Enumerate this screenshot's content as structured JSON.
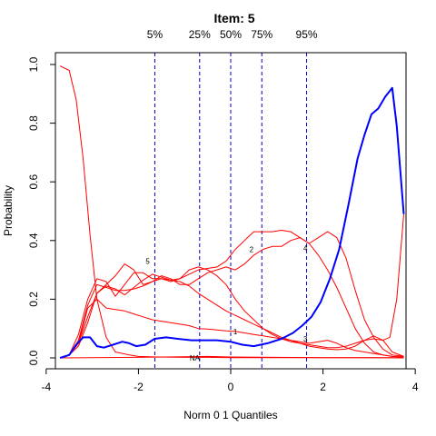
{
  "chart_data": {
    "type": "line",
    "title": "Item:  5",
    "xlabel": "Norm 0 1 Quantiles",
    "ylabel": "Probability",
    "xlim": [
      -3.8,
      3.8
    ],
    "ylim": [
      0,
      1
    ],
    "x_ticks": [
      -4,
      -2,
      0,
      2,
      4
    ],
    "y_ticks": [
      0.0,
      0.2,
      0.4,
      0.6,
      0.8,
      1.0
    ],
    "x_tick_labels": [
      "-4",
      "-2",
      "0",
      "2",
      "4"
    ],
    "y_tick_labels": [
      "0.0",
      "0.2",
      "0.4",
      "0.6",
      "0.8",
      "1.0"
    ],
    "grid": false,
    "quantile_lines": [
      {
        "label": "5%",
        "x": -1.645
      },
      {
        "label": "25%",
        "x": -0.674
      },
      {
        "label": "50%",
        "x": 0.0
      },
      {
        "label": "75%",
        "x": 0.674
      },
      {
        "label": "95%",
        "x": 1.645
      }
    ],
    "colors": {
      "option": "#ff0000",
      "key": "#0000ff",
      "quantile": "#0000cd",
      "axis": "#000000"
    },
    "series": [
      {
        "name": "",
        "role": "key",
        "x": [
          -3.7,
          -3.5,
          -3.35,
          -3.2,
          -3.05,
          -2.9,
          -2.75,
          -2.55,
          -2.35,
          -2.2,
          -2.05,
          -1.85,
          -1.65,
          -1.4,
          -1.15,
          -0.85,
          -0.55,
          -0.3,
          0.0,
          0.25,
          0.5,
          0.8,
          1.1,
          1.35,
          1.55,
          1.75,
          1.95,
          2.15,
          2.35,
          2.55,
          2.75,
          2.9,
          3.05,
          3.2,
          3.35,
          3.5,
          3.6,
          3.75
        ],
        "y": [
          0.0,
          0.01,
          0.045,
          0.07,
          0.07,
          0.04,
          0.035,
          0.045,
          0.055,
          0.05,
          0.04,
          0.045,
          0.065,
          0.07,
          0.065,
          0.06,
          0.06,
          0.06,
          0.055,
          0.045,
          0.04,
          0.05,
          0.065,
          0.085,
          0.11,
          0.14,
          0.19,
          0.27,
          0.37,
          0.52,
          0.68,
          0.76,
          0.83,
          0.85,
          0.89,
          0.92,
          0.79,
          0.49
        ]
      },
      {
        "name": "",
        "role": "option",
        "x": [
          -3.7,
          -3.5,
          -3.35,
          -3.2,
          -3.05,
          -2.9,
          -2.7,
          -2.5,
          -2.2,
          -2.0,
          -1.6,
          -1.0,
          -0.5,
          0.0,
          0.5,
          1.0,
          1.5,
          2.0,
          2.5,
          3.0,
          3.5,
          3.75
        ],
        "y": [
          0.995,
          0.98,
          0.88,
          0.68,
          0.42,
          0.2,
          0.07,
          0.02,
          0.01,
          0.005,
          0.003,
          0.002,
          0.002,
          0.001,
          0.001,
          0.001,
          0.001,
          0.001,
          0.001,
          0.001,
          0.001,
          0.001
        ]
      },
      {
        "name": "5",
        "role": "option",
        "x": [
          -3.7,
          -3.5,
          -3.3,
          -3.1,
          -2.9,
          -2.7,
          -2.5,
          -2.3,
          -2.1,
          -1.9,
          -1.7,
          -1.5,
          -1.3,
          -1.1,
          -0.9,
          -0.7,
          -0.5,
          -0.3,
          -0.1,
          0.1,
          0.3,
          0.5,
          0.7,
          0.9,
          1.1,
          1.3,
          1.5,
          1.7,
          1.9,
          2.1,
          2.3,
          2.5,
          2.7,
          2.9,
          3.1,
          3.3,
          3.5,
          3.75
        ],
        "y": [
          0.0,
          0.01,
          0.04,
          0.12,
          0.22,
          0.25,
          0.28,
          0.32,
          0.3,
          0.25,
          0.26,
          0.28,
          0.27,
          0.25,
          0.25,
          0.27,
          0.29,
          0.3,
          0.31,
          0.3,
          0.32,
          0.35,
          0.37,
          0.38,
          0.38,
          0.4,
          0.41,
          0.39,
          0.35,
          0.3,
          0.24,
          0.17,
          0.1,
          0.05,
          0.02,
          0.01,
          0.005,
          0.002
        ]
      },
      {
        "name": "2",
        "role": "option",
        "x": [
          -3.7,
          -3.5,
          -3.3,
          -3.1,
          -2.9,
          -2.7,
          -2.5,
          -2.3,
          -2.1,
          -1.9,
          -1.7,
          -1.5,
          -1.3,
          -1.1,
          -0.9,
          -0.7,
          -0.5,
          -0.3,
          -0.1,
          0.1,
          0.3,
          0.5,
          0.7,
          0.9,
          1.1,
          1.3,
          1.5,
          1.7,
          1.9,
          2.1,
          2.3,
          2.5,
          2.7,
          2.9,
          3.1,
          3.3,
          3.5,
          3.75
        ],
        "y": [
          0.0,
          0.01,
          0.05,
          0.14,
          0.22,
          0.245,
          0.235,
          0.215,
          0.24,
          0.265,
          0.285,
          0.275,
          0.265,
          0.27,
          0.285,
          0.3,
          0.305,
          0.31,
          0.33,
          0.37,
          0.4,
          0.43,
          0.43,
          0.43,
          0.435,
          0.43,
          0.41,
          0.39,
          0.41,
          0.43,
          0.41,
          0.34,
          0.23,
          0.13,
          0.07,
          0.03,
          0.01,
          0.005
        ]
      },
      {
        "name": "4",
        "role": "option",
        "x": [
          -3.7,
          -3.5,
          -3.3,
          -3.1,
          -2.9,
          -2.7,
          -2.5,
          -2.3,
          -2.1,
          -1.9,
          -1.7,
          -1.5,
          -1.3,
          -1.1,
          -0.9,
          -0.7,
          -0.5,
          -0.3,
          -0.1,
          0.1,
          0.3,
          0.5,
          0.7,
          0.9,
          1.1,
          1.3,
          1.5,
          1.7,
          1.9,
          2.1,
          2.3,
          2.5,
          2.7,
          2.9,
          3.1,
          3.3,
          3.5,
          3.75
        ],
        "y": [
          0.0,
          0.01,
          0.06,
          0.18,
          0.25,
          0.24,
          0.23,
          0.23,
          0.235,
          0.245,
          0.26,
          0.27,
          0.265,
          0.26,
          0.245,
          0.22,
          0.2,
          0.18,
          0.16,
          0.145,
          0.13,
          0.115,
          0.1,
          0.085,
          0.07,
          0.06,
          0.05,
          0.04,
          0.035,
          0.03,
          0.028,
          0.03,
          0.04,
          0.06,
          0.075,
          0.06,
          0.02,
          0.005
        ]
      },
      {
        "name": "1",
        "role": "option",
        "x": [
          -3.7,
          -3.5,
          -3.3,
          -3.1,
          -2.9,
          -2.7,
          -2.5,
          -2.3,
          -2.1,
          -1.9,
          -1.7,
          -1.5,
          -1.3,
          -1.1,
          -0.9,
          -0.7,
          -0.5,
          -0.3,
          -0.1,
          0.1,
          0.3,
          0.5,
          0.7,
          0.9,
          1.1,
          1.3,
          1.5,
          1.7,
          1.9,
          2.1,
          2.3,
          2.5,
          2.7,
          2.9,
          3.1,
          3.3,
          3.5,
          3.75
        ],
        "y": [
          0.0,
          0.01,
          0.05,
          0.17,
          0.2,
          0.17,
          0.165,
          0.16,
          0.15,
          0.14,
          0.13,
          0.125,
          0.12,
          0.115,
          0.11,
          0.1,
          0.098,
          0.095,
          0.092,
          0.09,
          0.085,
          0.08,
          0.075,
          0.07,
          0.065,
          0.06,
          0.055,
          0.05,
          0.055,
          0.06,
          0.05,
          0.035,
          0.025,
          0.02,
          0.015,
          0.01,
          0.005,
          0.003
        ]
      },
      {
        "name": "3",
        "role": "option",
        "x": [
          -3.7,
          -3.5,
          -3.3,
          -3.1,
          -2.9,
          -2.7,
          -2.5,
          -2.3,
          -2.1,
          -1.9,
          -1.7,
          -1.5,
          -1.3,
          -1.1,
          -0.9,
          -0.7,
          -0.5,
          -0.3,
          -0.1,
          0.1,
          0.3,
          0.5,
          0.7,
          0.9,
          1.1,
          1.3,
          1.5,
          1.7,
          1.9,
          2.1,
          2.3,
          2.5,
          2.7,
          2.9,
          3.1,
          3.3,
          3.45,
          3.6,
          3.75
        ],
        "y": [
          0.0,
          0.01,
          0.08,
          0.2,
          0.27,
          0.26,
          0.21,
          0.25,
          0.29,
          0.29,
          0.27,
          0.27,
          0.26,
          0.27,
          0.3,
          0.31,
          0.3,
          0.28,
          0.25,
          0.2,
          0.16,
          0.13,
          0.1,
          0.08,
          0.065,
          0.055,
          0.05,
          0.045,
          0.04,
          0.035,
          0.035,
          0.04,
          0.05,
          0.06,
          0.065,
          0.06,
          0.07,
          0.2,
          0.49
        ]
      },
      {
        "name": "NA",
        "role": "option",
        "x": [
          -3.7,
          -3.0,
          -2.0,
          -1.0,
          -0.5,
          0.0,
          1.0,
          2.0,
          3.0,
          3.75
        ],
        "y": [
          0.0,
          0.001,
          0.002,
          0.004,
          0.005,
          0.003,
          0.002,
          0.001,
          0.001,
          0.0
        ]
      }
    ],
    "curve_labels": [
      {
        "text": "5",
        "x": -1.8,
        "y": 0.33
      },
      {
        "text": "2",
        "x": 0.45,
        "y": 0.37
      },
      {
        "text": "4",
        "x": 1.62,
        "y": 0.375
      },
      {
        "text": "1",
        "x": 0.1,
        "y": 0.09
      },
      {
        "text": "3",
        "x": 1.62,
        "y": 0.065
      },
      {
        "text": "NA",
        "x": -0.78,
        "y": 0.0
      }
    ]
  }
}
